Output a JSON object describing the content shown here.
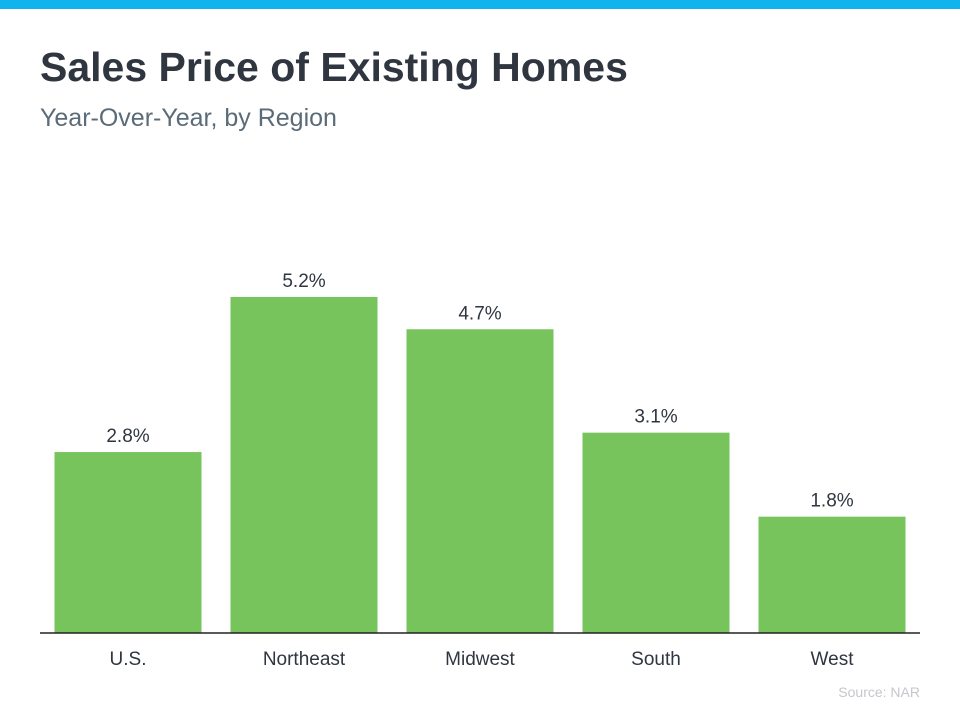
{
  "header": {
    "title": "Sales Price of Existing Homes",
    "subtitle": "Year-Over-Year, by Region"
  },
  "footer": {
    "source": "Source: NAR"
  },
  "colors": {
    "accent": "#0fb4ef",
    "bar": "#77c45c",
    "axis": "#222222",
    "text": "#2f3640"
  },
  "chart_data": {
    "type": "bar",
    "title": "Sales Price of Existing Homes",
    "subtitle": "Year-Over-Year, by Region",
    "categories": [
      "U.S.",
      "Northeast",
      "Midwest",
      "South",
      "West"
    ],
    "values": [
      2.8,
      5.2,
      4.7,
      3.1,
      1.8
    ],
    "value_labels": [
      "2.8%",
      "5.2%",
      "4.7%",
      "3.1%",
      "1.8%"
    ],
    "xlabel": "",
    "ylabel": "",
    "ylim": [
      0,
      8
    ],
    "grid": false,
    "legend": "none"
  }
}
